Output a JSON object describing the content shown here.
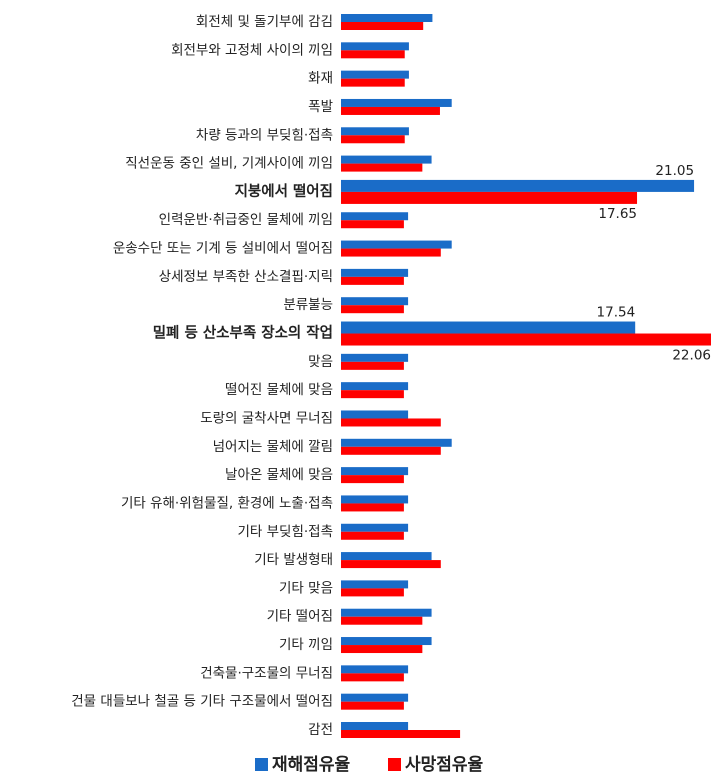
{
  "chart_data": {
    "type": "hbar",
    "categories": [
      "회전체 및 돌기부에 감김",
      "회전부와 고정체 사이의 끼임",
      "화재",
      "폭발",
      "차량 등과의 부딪힘·접촉",
      "직선운동 중인 설비, 기계사이에 끼임",
      "지붕에서 떨어짐",
      "인력운반·취급중인 물체에 끼임",
      "운송수단 또는 기계 등 설비에서 떨어짐",
      "상세정보 부족한 산소결핍·지릭",
      "분류불능",
      "밀폐 등 산소부족 장소의 작업",
      "맞음",
      "떨어진 물체에 맞음",
      "도랑의 굴착사면 무너짐",
      "넘어지는 물체에 깔림",
      "날아온 물체에 맞음",
      "기타 유해·위험물질, 환경에 노출·접촉",
      "기타 부딪힘·접촉",
      "기타 발생형태",
      "기타 맞음",
      "기타 떨어짐",
      "기타 끼임",
      "건축물·구조물의 무너짐",
      "건물 대들보나 철골 등 기타 구조물에서 떨어짐",
      "감전"
    ],
    "emphasized": [
      6,
      11
    ],
    "series": [
      {
        "name": "재해점유율",
        "color": "#1a6cc8",
        "values": [
          5.45,
          4.05,
          4.05,
          6.6,
          4.05,
          5.4,
          21.05,
          4.0,
          6.6,
          4.0,
          4.0,
          17.54,
          4.0,
          4.0,
          4.0,
          6.6,
          4.0,
          4.0,
          4.0,
          5.4,
          4.0,
          5.4,
          5.4,
          4.0,
          4.0,
          4.0
        ],
        "value_labels": [
          null,
          null,
          null,
          null,
          null,
          null,
          "21.05",
          null,
          null,
          null,
          null,
          "17.54",
          null,
          null,
          null,
          null,
          null,
          null,
          null,
          null,
          null,
          null,
          null,
          null,
          null,
          null
        ]
      },
      {
        "name": "사망점유율",
        "color": "#ff0000",
        "values": [
          4.9,
          3.8,
          3.8,
          5.9,
          3.8,
          4.85,
          17.65,
          3.75,
          5.95,
          3.75,
          3.75,
          22.06,
          3.75,
          3.75,
          5.95,
          5.95,
          3.75,
          3.75,
          3.75,
          5.95,
          3.75,
          4.85,
          4.85,
          3.75,
          3.75,
          7.1
        ],
        "value_labels": [
          null,
          null,
          null,
          null,
          null,
          null,
          "17.65",
          null,
          null,
          null,
          null,
          "22.06",
          null,
          null,
          null,
          null,
          null,
          null,
          null,
          null,
          null,
          null,
          null,
          null,
          null,
          null
        ]
      }
    ]
  }
}
